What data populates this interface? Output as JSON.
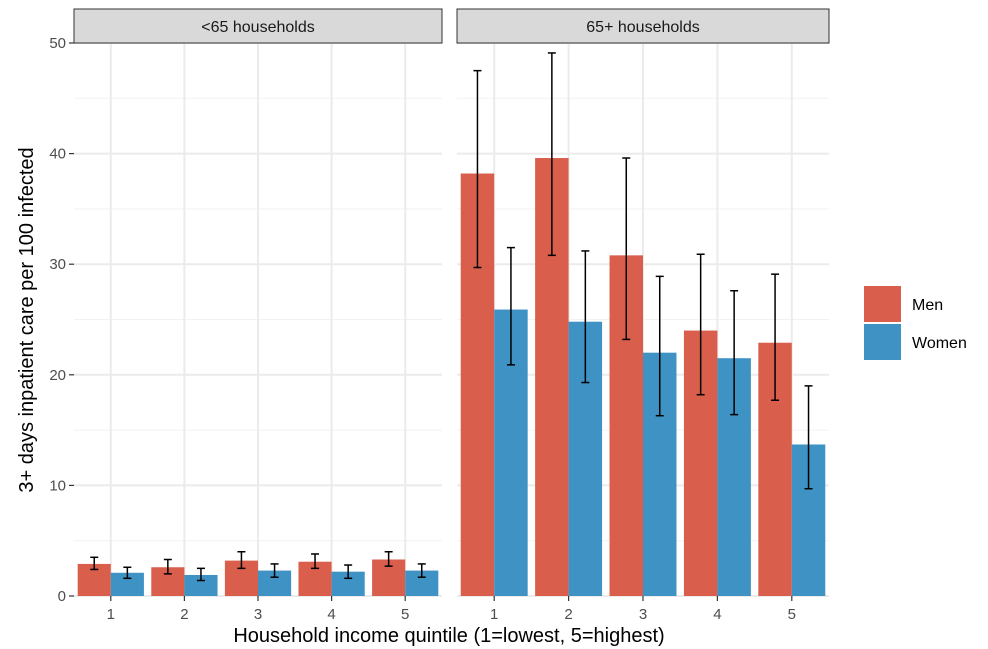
{
  "chart_data": {
    "type": "bar",
    "xlabel": "Household income quintile (1=lowest, 5=highest)",
    "ylabel": "3+ days inpatient care per 100 infected",
    "ylim": [
      0,
      50
    ],
    "yticks": [
      0,
      10,
      20,
      30,
      40,
      50
    ],
    "categories": [
      "1",
      "2",
      "3",
      "4",
      "5"
    ],
    "legend_position": "right",
    "grid": true,
    "colors": {
      "Men": "#d95f4c",
      "Women": "#3e92c4"
    },
    "panels": [
      {
        "title": "<65 households",
        "series": [
          {
            "name": "Men",
            "values": [
              2.9,
              2.6,
              3.2,
              3.1,
              3.3
            ],
            "error_low": [
              2.4,
              2.0,
              2.5,
              2.5,
              2.7
            ],
            "error_high": [
              3.5,
              3.3,
              4.0,
              3.8,
              4.0
            ]
          },
          {
            "name": "Women",
            "values": [
              2.1,
              1.9,
              2.3,
              2.2,
              2.3
            ],
            "error_low": [
              1.6,
              1.4,
              1.7,
              1.6,
              1.7
            ],
            "error_high": [
              2.6,
              2.5,
              2.9,
              2.8,
              2.9
            ]
          }
        ]
      },
      {
        "title": "65+ households",
        "series": [
          {
            "name": "Men",
            "values": [
              38.2,
              39.6,
              30.8,
              24.0,
              22.9
            ],
            "error_low": [
              29.7,
              30.8,
              23.2,
              18.2,
              17.7
            ],
            "error_high": [
              47.5,
              49.1,
              39.6,
              30.9,
              29.1
            ]
          },
          {
            "name": "Women",
            "values": [
              25.9,
              24.8,
              22.0,
              21.5,
              13.7
            ],
            "error_low": [
              20.9,
              19.3,
              16.3,
              16.4,
              9.7
            ],
            "error_high": [
              31.5,
              31.2,
              28.9,
              27.6,
              19.0
            ]
          }
        ]
      }
    ]
  }
}
